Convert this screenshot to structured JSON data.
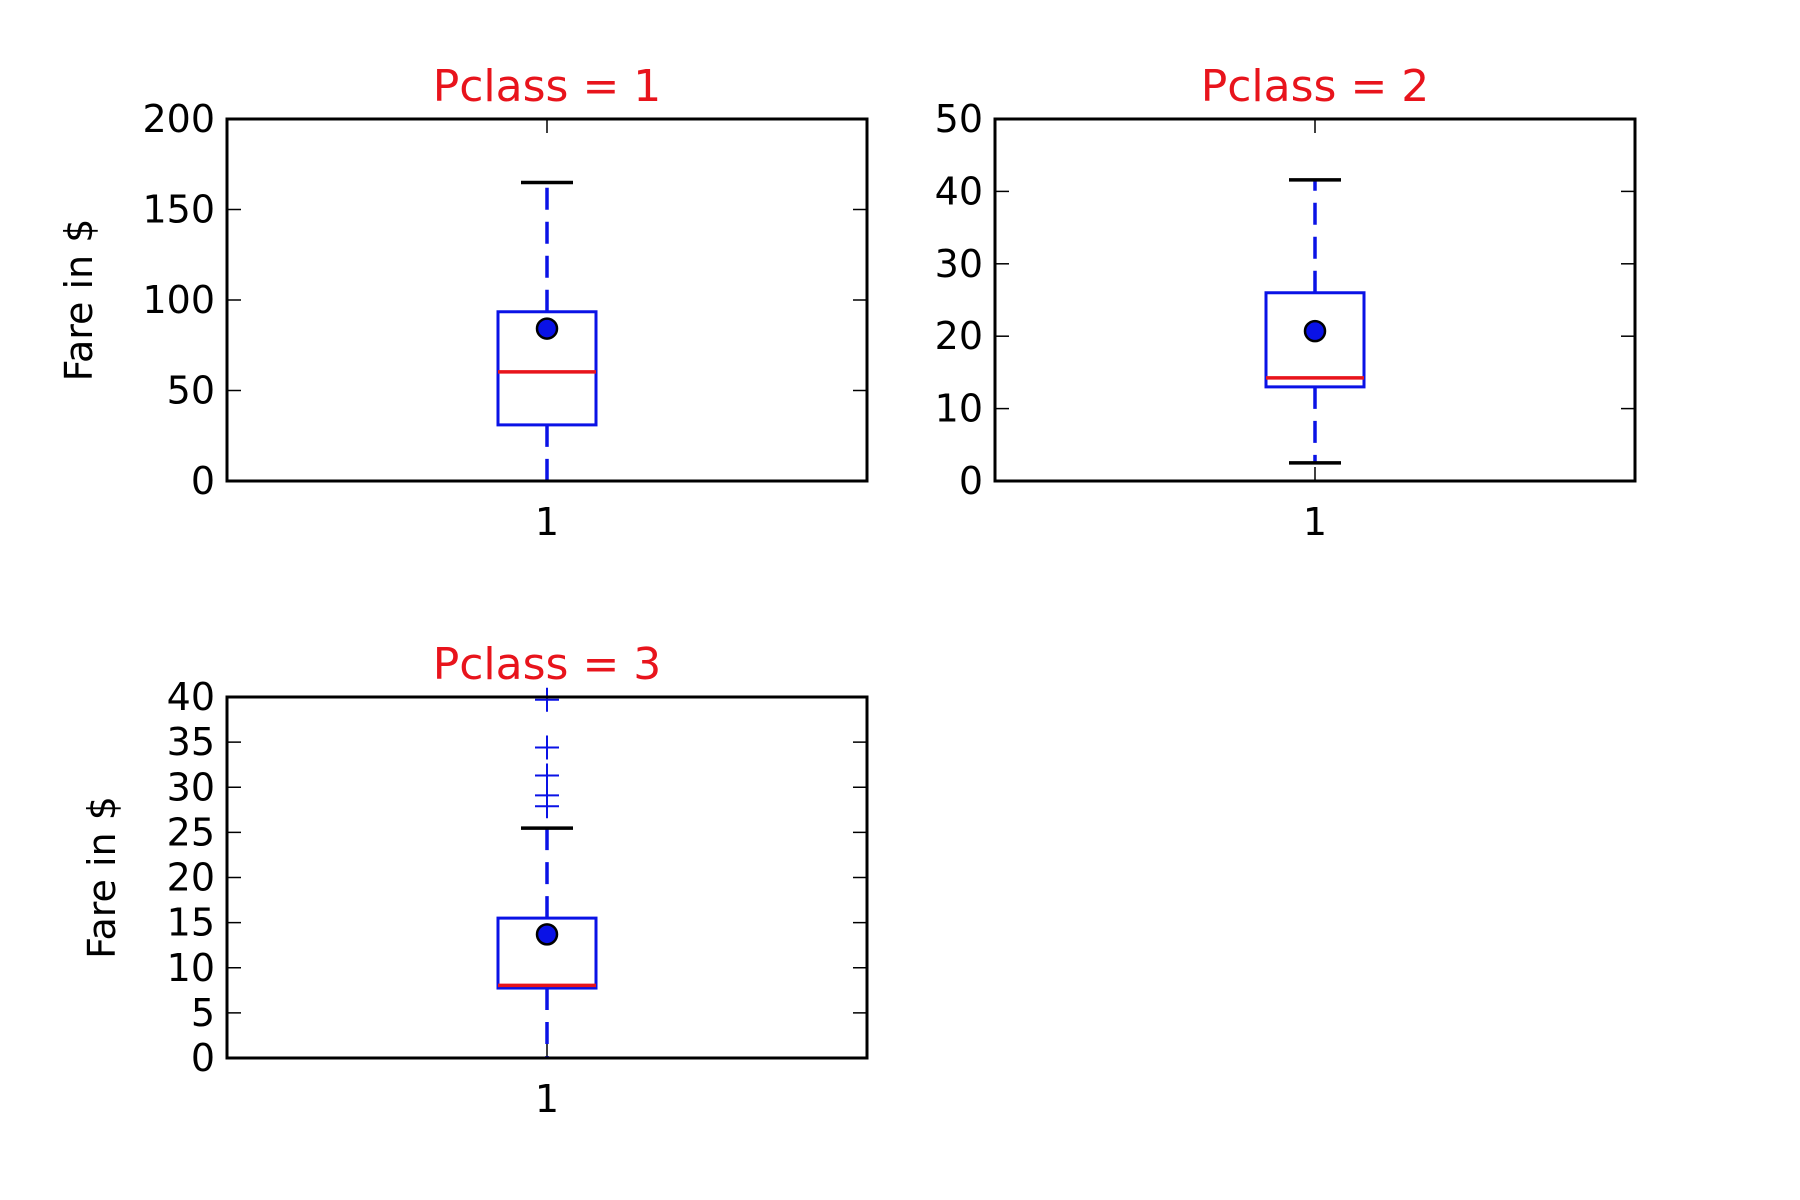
{
  "colors": {
    "title": "#e8141c",
    "box": "#0a12e6",
    "median": "#e8141c",
    "whisker": "#0a12e6",
    "cap": "#000000",
    "mean_fill": "#0a12e6",
    "flier": "#0a12e6",
    "axes": "#000000"
  },
  "chart_data": [
    {
      "type": "box",
      "title": "Pclass = 1",
      "xlabel": "",
      "ylabel": "Fare in $",
      "categories": [
        "1"
      ],
      "ylim": [
        0,
        200
      ],
      "yticks": [
        0,
        50,
        100,
        150,
        200
      ],
      "box": {
        "whisker_low": 0,
        "q1": 31,
        "median": 60.3,
        "q3": 93.5,
        "whisker_high": 164.9,
        "mean": 84.2,
        "fliers": []
      }
    },
    {
      "type": "box",
      "title": "Pclass = 2",
      "xlabel": "",
      "ylabel": "",
      "categories": [
        "1"
      ],
      "ylim": [
        0,
        50
      ],
      "yticks": [
        0,
        10,
        20,
        30,
        40,
        50
      ],
      "box": {
        "whisker_low": 2.5,
        "q1": 13,
        "median": 14.25,
        "q3": 26,
        "whisker_high": 41.6,
        "mean": 20.7,
        "fliers": []
      }
    },
    {
      "type": "box",
      "title": "Pclass = 3",
      "xlabel": "",
      "ylabel": "Fare in $",
      "categories": [
        "1"
      ],
      "ylim": [
        0,
        40
      ],
      "yticks": [
        0,
        5,
        10,
        15,
        20,
        25,
        30,
        35,
        40
      ],
      "box": {
        "whisker_low": 0,
        "q1": 7.75,
        "median": 8.05,
        "q3": 15.5,
        "whisker_high": 25.47,
        "mean": 13.7,
        "fliers": [
          27.9,
          29.1,
          31.3,
          34.4,
          39.7
        ]
      }
    }
  ]
}
